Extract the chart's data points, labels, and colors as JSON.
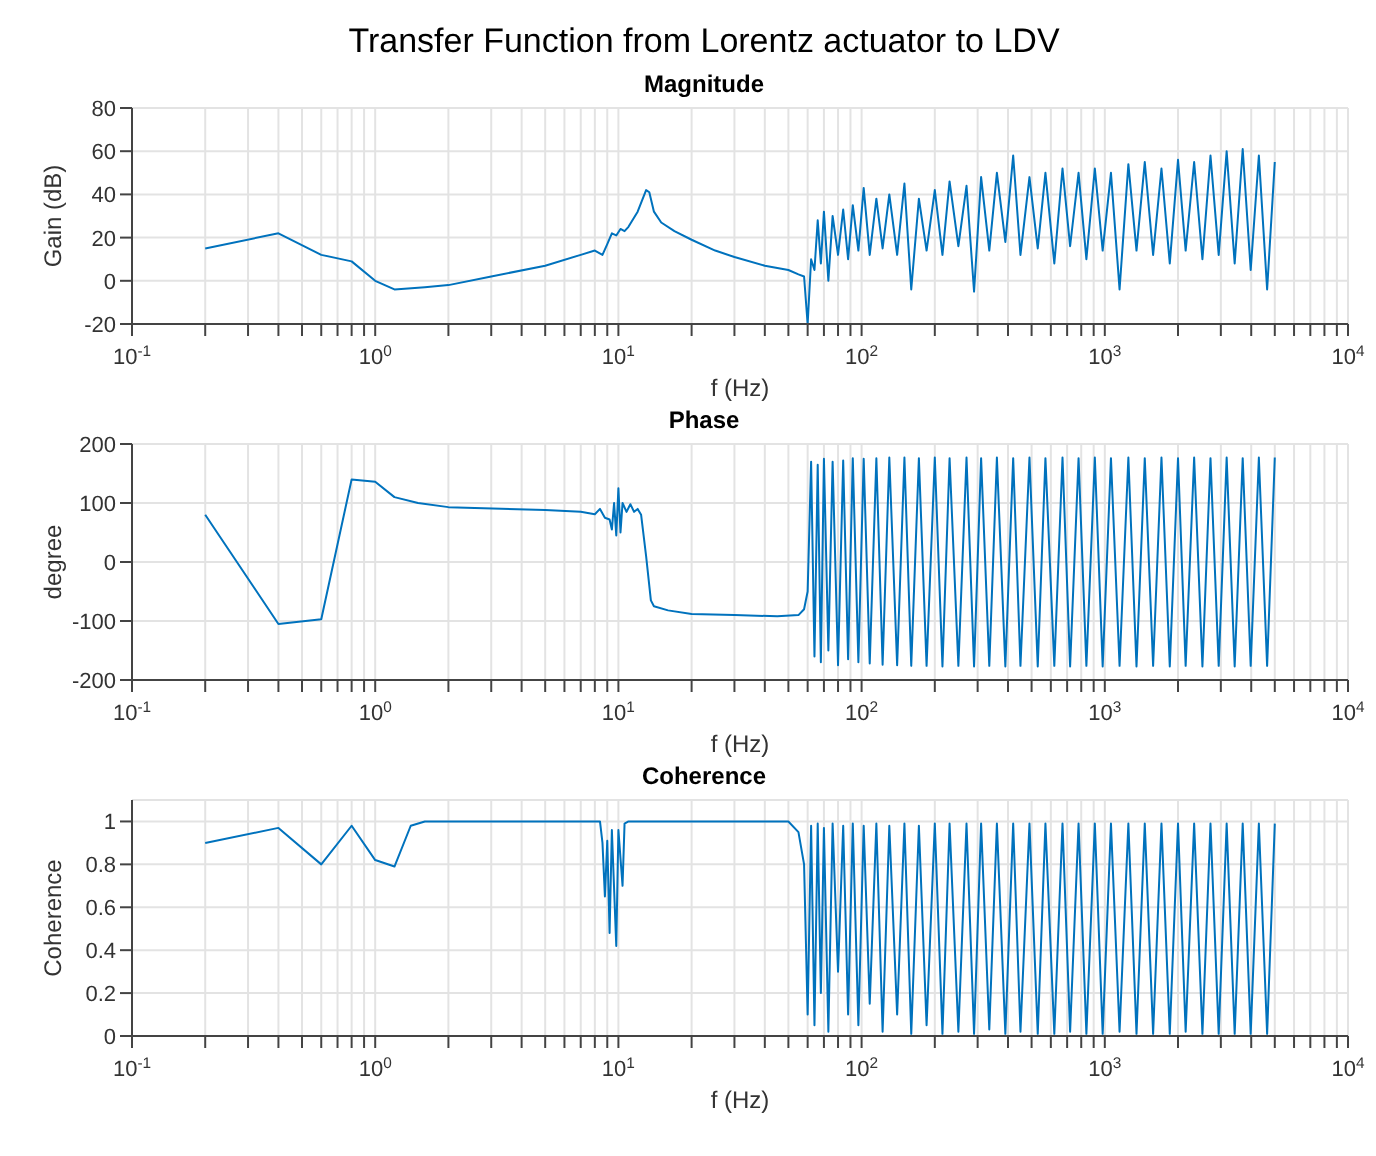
{
  "chart_data": [
    {
      "type": "line",
      "title": "Transfer Function from Lorentz actuator to LDV",
      "subtitle": "Magnitude",
      "xlabel": "f (Hz)",
      "ylabel": "Gain (dB)",
      "log": "x",
      "grid": true,
      "marker": "none",
      "line_style": "solid",
      "legend": false,
      "xlim": [
        0.1,
        10000
      ],
      "ylim": [
        -20,
        80
      ],
      "yticks": [
        -20,
        0,
        20,
        40,
        60,
        80
      ],
      "xticks": [
        {
          "value": 0.1,
          "label": "10$^{-1}$"
        },
        {
          "value": 0.2,
          "label": null
        },
        {
          "value": 0.3,
          "label": null
        },
        {
          "value": 0.4,
          "label": null
        },
        {
          "value": 0.5,
          "label": null
        },
        {
          "value": 0.6,
          "label": null
        },
        {
          "value": 0.7,
          "label": null
        },
        {
          "value": 0.8,
          "label": null
        },
        {
          "value": 0.9,
          "label": null
        },
        {
          "value": 1,
          "label": "10$^{0}$"
        },
        {
          "value": 2,
          "label": null
        },
        {
          "value": 3,
          "label": null
        },
        {
          "value": 4,
          "label": null
        },
        {
          "value": 5,
          "label": null
        },
        {
          "value": 6,
          "label": null
        },
        {
          "value": 7,
          "label": null
        },
        {
          "value": 8,
          "label": null
        },
        {
          "value": 9,
          "label": null
        },
        {
          "value": 10,
          "label": "10$^{1}$"
        },
        {
          "value": 20,
          "label": null
        },
        {
          "value": 30,
          "label": null
        },
        {
          "value": 40,
          "label": null
        },
        {
          "value": 50,
          "label": null
        },
        {
          "value": 60,
          "label": null
        },
        {
          "value": 70,
          "label": null
        },
        {
          "value": 80,
          "label": null
        },
        {
          "value": 90,
          "label": null
        },
        {
          "value": 100,
          "label": "10$^{2}$"
        },
        {
          "value": 200,
          "label": null
        },
        {
          "value": 300,
          "label": null
        },
        {
          "value": 400,
          "label": null
        },
        {
          "value": 500,
          "label": null
        },
        {
          "value": 600,
          "label": null
        },
        {
          "value": 700,
          "label": null
        },
        {
          "value": 800,
          "label": null
        },
        {
          "value": 900,
          "label": null
        },
        {
          "value": 1000,
          "label": "10$^{3}$"
        },
        {
          "value": 2000,
          "label": null
        },
        {
          "value": 3000,
          "label": null
        },
        {
          "value": 4000,
          "label": null
        },
        {
          "value": 5000,
          "label": null
        },
        {
          "value": 6000,
          "label": null
        },
        {
          "value": 7000,
          "label": null
        },
        {
          "value": 8000,
          "label": null
        },
        {
          "value": 9000,
          "label": null
        },
        {
          "value": 10000,
          "label": "10$^{4}$"
        }
      ],
      "series": [
        {
          "color": "#0072bd",
          "x": [
            0.2,
            0.4,
            0.6,
            0.8,
            1,
            1.2,
            1.6,
            2,
            3,
            5,
            7,
            8,
            8.6,
            9,
            9.4,
            9.8,
            10.2,
            10.6,
            11,
            12,
            13,
            13.4,
            14,
            15,
            17,
            20,
            25,
            30,
            40,
            50,
            55,
            58,
            60,
            62,
            64,
            66,
            68,
            70,
            73,
            76,
            80,
            84,
            88,
            92,
            97,
            102,
            108,
            115,
            122,
            130,
            140,
            150,
            160,
            172,
            185,
            200,
            215,
            230,
            250,
            270,
            290,
            310,
            335,
            360,
            390,
            420,
            450,
            490,
            530,
            570,
            620,
            670,
            720,
            780,
            840,
            910,
            980,
            1060,
            1150,
            1250,
            1350,
            1460,
            1580,
            1710,
            1850,
            2000,
            2150,
            2330,
            2520,
            2720,
            2940,
            3170,
            3420,
            3690,
            3980,
            4300,
            4650,
            5000
          ],
          "values": [
            15,
            22,
            12,
            9,
            0,
            -4,
            -3,
            -2,
            2,
            7,
            12,
            14,
            12,
            17,
            22,
            21,
            24,
            23,
            25,
            32,
            42,
            41,
            32,
            27,
            23,
            19,
            14,
            11,
            7,
            5,
            3,
            2,
            -20,
            10,
            5,
            28,
            8,
            32,
            0,
            30,
            12,
            33,
            10,
            35,
            14,
            43,
            12,
            38,
            15,
            40,
            12,
            45,
            -4,
            38,
            14,
            42,
            12,
            46,
            16,
            44,
            -5,
            48,
            14,
            50,
            18,
            58,
            12,
            48,
            15,
            50,
            8,
            52,
            16,
            50,
            10,
            52,
            14,
            50,
            -4,
            54,
            14,
            55,
            12,
            52,
            8,
            56,
            14,
            55,
            10,
            58,
            12,
            60,
            8,
            61,
            5,
            58,
            -4,
            55
          ]
        }
      ]
    },
    {
      "type": "line",
      "title": "Phase",
      "xlabel": "f (Hz)",
      "ylabel": "degree",
      "log": "x",
      "grid": true,
      "marker": "none",
      "line_style": "solid",
      "legend": false,
      "xlim": [
        0.1,
        10000
      ],
      "ylim": [
        -200,
        200
      ],
      "yticks": [
        -200,
        -100,
        0,
        100,
        200
      ],
      "xticks": [
        {
          "value": 0.1,
          "label": "10$^{-1}$"
        },
        {
          "value": 0.2,
          "label": null
        },
        {
          "value": 0.3,
          "label": null
        },
        {
          "value": 0.4,
          "label": null
        },
        {
          "value": 0.5,
          "label": null
        },
        {
          "value": 0.6,
          "label": null
        },
        {
          "value": 0.7,
          "label": null
        },
        {
          "value": 0.8,
          "label": null
        },
        {
          "value": 0.9,
          "label": null
        },
        {
          "value": 1,
          "label": "10$^{0}$"
        },
        {
          "value": 2,
          "label": null
        },
        {
          "value": 3,
          "label": null
        },
        {
          "value": 4,
          "label": null
        },
        {
          "value": 5,
          "label": null
        },
        {
          "value": 6,
          "label": null
        },
        {
          "value": 7,
          "label": null
        },
        {
          "value": 8,
          "label": null
        },
        {
          "value": 9,
          "label": null
        },
        {
          "value": 10,
          "label": "10$^{1}$"
        },
        {
          "value": 20,
          "label": null
        },
        {
          "value": 30,
          "label": null
        },
        {
          "value": 40,
          "label": null
        },
        {
          "value": 50,
          "label": null
        },
        {
          "value": 60,
          "label": null
        },
        {
          "value": 70,
          "label": null
        },
        {
          "value": 80,
          "label": null
        },
        {
          "value": 90,
          "label": null
        },
        {
          "value": 100,
          "label": "10$^{2}$"
        },
        {
          "value": 200,
          "label": null
        },
        {
          "value": 300,
          "label": null
        },
        {
          "value": 400,
          "label": null
        },
        {
          "value": 500,
          "label": null
        },
        {
          "value": 600,
          "label": null
        },
        {
          "value": 700,
          "label": null
        },
        {
          "value": 800,
          "label": null
        },
        {
          "value": 900,
          "label": null
        },
        {
          "value": 1000,
          "label": "10$^{3}$"
        },
        {
          "value": 2000,
          "label": null
        },
        {
          "value": 3000,
          "label": null
        },
        {
          "value": 4000,
          "label": null
        },
        {
          "value": 5000,
          "label": null
        },
        {
          "value": 6000,
          "label": null
        },
        {
          "value": 7000,
          "label": null
        },
        {
          "value": 8000,
          "label": null
        },
        {
          "value": 9000,
          "label": null
        },
        {
          "value": 10000,
          "label": "10$^{4}$"
        }
      ],
      "series": [
        {
          "color": "#0072bd",
          "x": [
            0.2,
            0.4,
            0.6,
            0.8,
            1,
            1.2,
            1.5,
            2,
            5,
            7,
            8,
            8.4,
            8.8,
            9.2,
            9.4,
            9.6,
            9.8,
            10,
            10.2,
            10.4,
            10.8,
            11.2,
            11.6,
            12,
            12.4,
            13,
            13.6,
            14,
            16,
            20,
            30,
            45,
            55,
            58,
            60,
            62,
            64,
            66,
            68,
            70,
            73,
            76,
            80,
            84,
            88,
            92,
            97,
            102,
            108,
            115,
            122,
            130,
            140,
            150,
            160,
            172,
            185,
            200,
            215,
            230,
            250,
            270,
            290,
            310,
            335,
            360,
            390,
            420,
            450,
            490,
            530,
            570,
            620,
            670,
            720,
            780,
            840,
            910,
            980,
            1060,
            1150,
            1250,
            1350,
            1460,
            1580,
            1710,
            1850,
            2000,
            2150,
            2330,
            2520,
            2720,
            2940,
            3170,
            3420,
            3690,
            3980,
            4300,
            4650,
            5000
          ],
          "values": [
            80,
            -105,
            -97,
            140,
            136,
            110,
            100,
            93,
            88,
            85,
            81,
            90,
            75,
            72,
            55,
            100,
            45,
            125,
            50,
            100,
            85,
            98,
            85,
            90,
            80,
            10,
            -65,
            -75,
            -82,
            -88,
            -90,
            -92,
            -90,
            -80,
            -50,
            170,
            -160,
            165,
            -170,
            175,
            -150,
            170,
            -175,
            172,
            -165,
            176,
            -170,
            175,
            -172,
            176,
            -174,
            177,
            -175,
            177,
            -176,
            176,
            -176,
            177,
            -177,
            176,
            -176,
            177,
            -177,
            176,
            -176,
            177,
            -177,
            176,
            -176,
            177,
            -177,
            176,
            -176,
            177,
            -177,
            176,
            -176,
            177,
            -177,
            176,
            -176,
            177,
            -177,
            176,
            -176,
            177,
            -177,
            176,
            -176,
            177,
            -177,
            176,
            -176,
            177,
            -177,
            176,
            -176,
            177,
            -176,
            177
          ]
        }
      ]
    },
    {
      "type": "line",
      "title": "Coherence",
      "xlabel": "f (Hz)",
      "ylabel": "Coherence",
      "log": "x",
      "grid": true,
      "marker": "none",
      "line_style": "solid",
      "legend": false,
      "xlim": [
        0.1,
        10000
      ],
      "ylim": [
        0,
        1.1
      ],
      "yticks": [
        0,
        0.2,
        0.4,
        0.6,
        0.8,
        1
      ],
      "xticks": [
        {
          "value": 0.1,
          "label": "10$^{-1}$"
        },
        {
          "value": 0.2,
          "label": null
        },
        {
          "value": 0.3,
          "label": null
        },
        {
          "value": 0.4,
          "label": null
        },
        {
          "value": 0.5,
          "label": null
        },
        {
          "value": 0.6,
          "label": null
        },
        {
          "value": 0.7,
          "label": null
        },
        {
          "value": 0.8,
          "label": null
        },
        {
          "value": 0.9,
          "label": null
        },
        {
          "value": 1,
          "label": "10$^{0}$"
        },
        {
          "value": 2,
          "label": null
        },
        {
          "value": 3,
          "label": null
        },
        {
          "value": 4,
          "label": null
        },
        {
          "value": 5,
          "label": null
        },
        {
          "value": 6,
          "label": null
        },
        {
          "value": 7,
          "label": null
        },
        {
          "value": 8,
          "label": null
        },
        {
          "value": 9,
          "label": null
        },
        {
          "value": 10,
          "label": "10$^{1}$"
        },
        {
          "value": 20,
          "label": null
        },
        {
          "value": 30,
          "label": null
        },
        {
          "value": 40,
          "label": null
        },
        {
          "value": 50,
          "label": null
        },
        {
          "value": 60,
          "label": null
        },
        {
          "value": 70,
          "label": null
        },
        {
          "value": 80,
          "label": null
        },
        {
          "value": 90,
          "label": null
        },
        {
          "value": 100,
          "label": "10$^{2}$"
        },
        {
          "value": 200,
          "label": null
        },
        {
          "value": 300,
          "label": null
        },
        {
          "value": 400,
          "label": null
        },
        {
          "value": 500,
          "label": null
        },
        {
          "value": 600,
          "label": null
        },
        {
          "value": 700,
          "label": null
        },
        {
          "value": 800,
          "label": null
        },
        {
          "value": 900,
          "label": null
        },
        {
          "value": 1000,
          "label": "10$^{3}$"
        },
        {
          "value": 2000,
          "label": null
        },
        {
          "value": 3000,
          "label": null
        },
        {
          "value": 4000,
          "label": null
        },
        {
          "value": 5000,
          "label": null
        },
        {
          "value": 6000,
          "label": null
        },
        {
          "value": 7000,
          "label": null
        },
        {
          "value": 8000,
          "label": null
        },
        {
          "value": 9000,
          "label": null
        },
        {
          "value": 10000,
          "label": "10$^{4}$"
        }
      ],
      "series": [
        {
          "color": "#0072bd",
          "x": [
            0.2,
            0.4,
            0.6,
            0.8,
            1,
            1.2,
            1.4,
            1.6,
            8.4,
            8.6,
            8.8,
            9,
            9.2,
            9.4,
            9.8,
            10,
            10.4,
            10.6,
            11,
            50,
            55,
            58,
            60,
            62,
            64,
            66,
            68,
            70,
            73,
            76,
            80,
            84,
            88,
            92,
            97,
            102,
            108,
            115,
            122,
            130,
            140,
            150,
            160,
            172,
            185,
            200,
            215,
            230,
            250,
            270,
            290,
            310,
            335,
            360,
            390,
            420,
            450,
            490,
            530,
            570,
            620,
            670,
            720,
            780,
            840,
            910,
            980,
            1060,
            1150,
            1250,
            1350,
            1460,
            1580,
            1710,
            1850,
            2000,
            2150,
            2330,
            2520,
            2720,
            2940,
            3170,
            3420,
            3690,
            3980,
            4300,
            4650,
            5000
          ],
          "values": [
            0.9,
            0.97,
            0.8,
            0.98,
            0.82,
            0.79,
            0.98,
            1,
            1,
            0.9,
            0.65,
            0.91,
            0.48,
            0.96,
            0.42,
            0.96,
            0.7,
            0.99,
            1,
            1,
            0.95,
            0.8,
            0.1,
            0.98,
            0.05,
            0.99,
            0.2,
            0.97,
            0.02,
            0.99,
            0.3,
            0.98,
            0.1,
            0.99,
            0.05,
            0.98,
            0.15,
            0.99,
            0.02,
            0.98,
            0.1,
            0.99,
            0.01,
            0.98,
            0.05,
            0.99,
            0.01,
            0.99,
            0.02,
            0.99,
            0.01,
            0.99,
            0.03,
            0.99,
            0.01,
            0.99,
            0.02,
            0.99,
            0.01,
            0.99,
            0.01,
            0.99,
            0.02,
            0.99,
            0.01,
            0.99,
            0.01,
            0.99,
            0.02,
            0.99,
            0.01,
            0.99,
            0.01,
            0.99,
            0.01,
            0.99,
            0.02,
            0.99,
            0.01,
            0.99,
            0.01,
            0.99,
            0.01,
            0.99,
            0.01,
            0.99,
            0.01,
            0.99
          ]
        }
      ]
    }
  ]
}
